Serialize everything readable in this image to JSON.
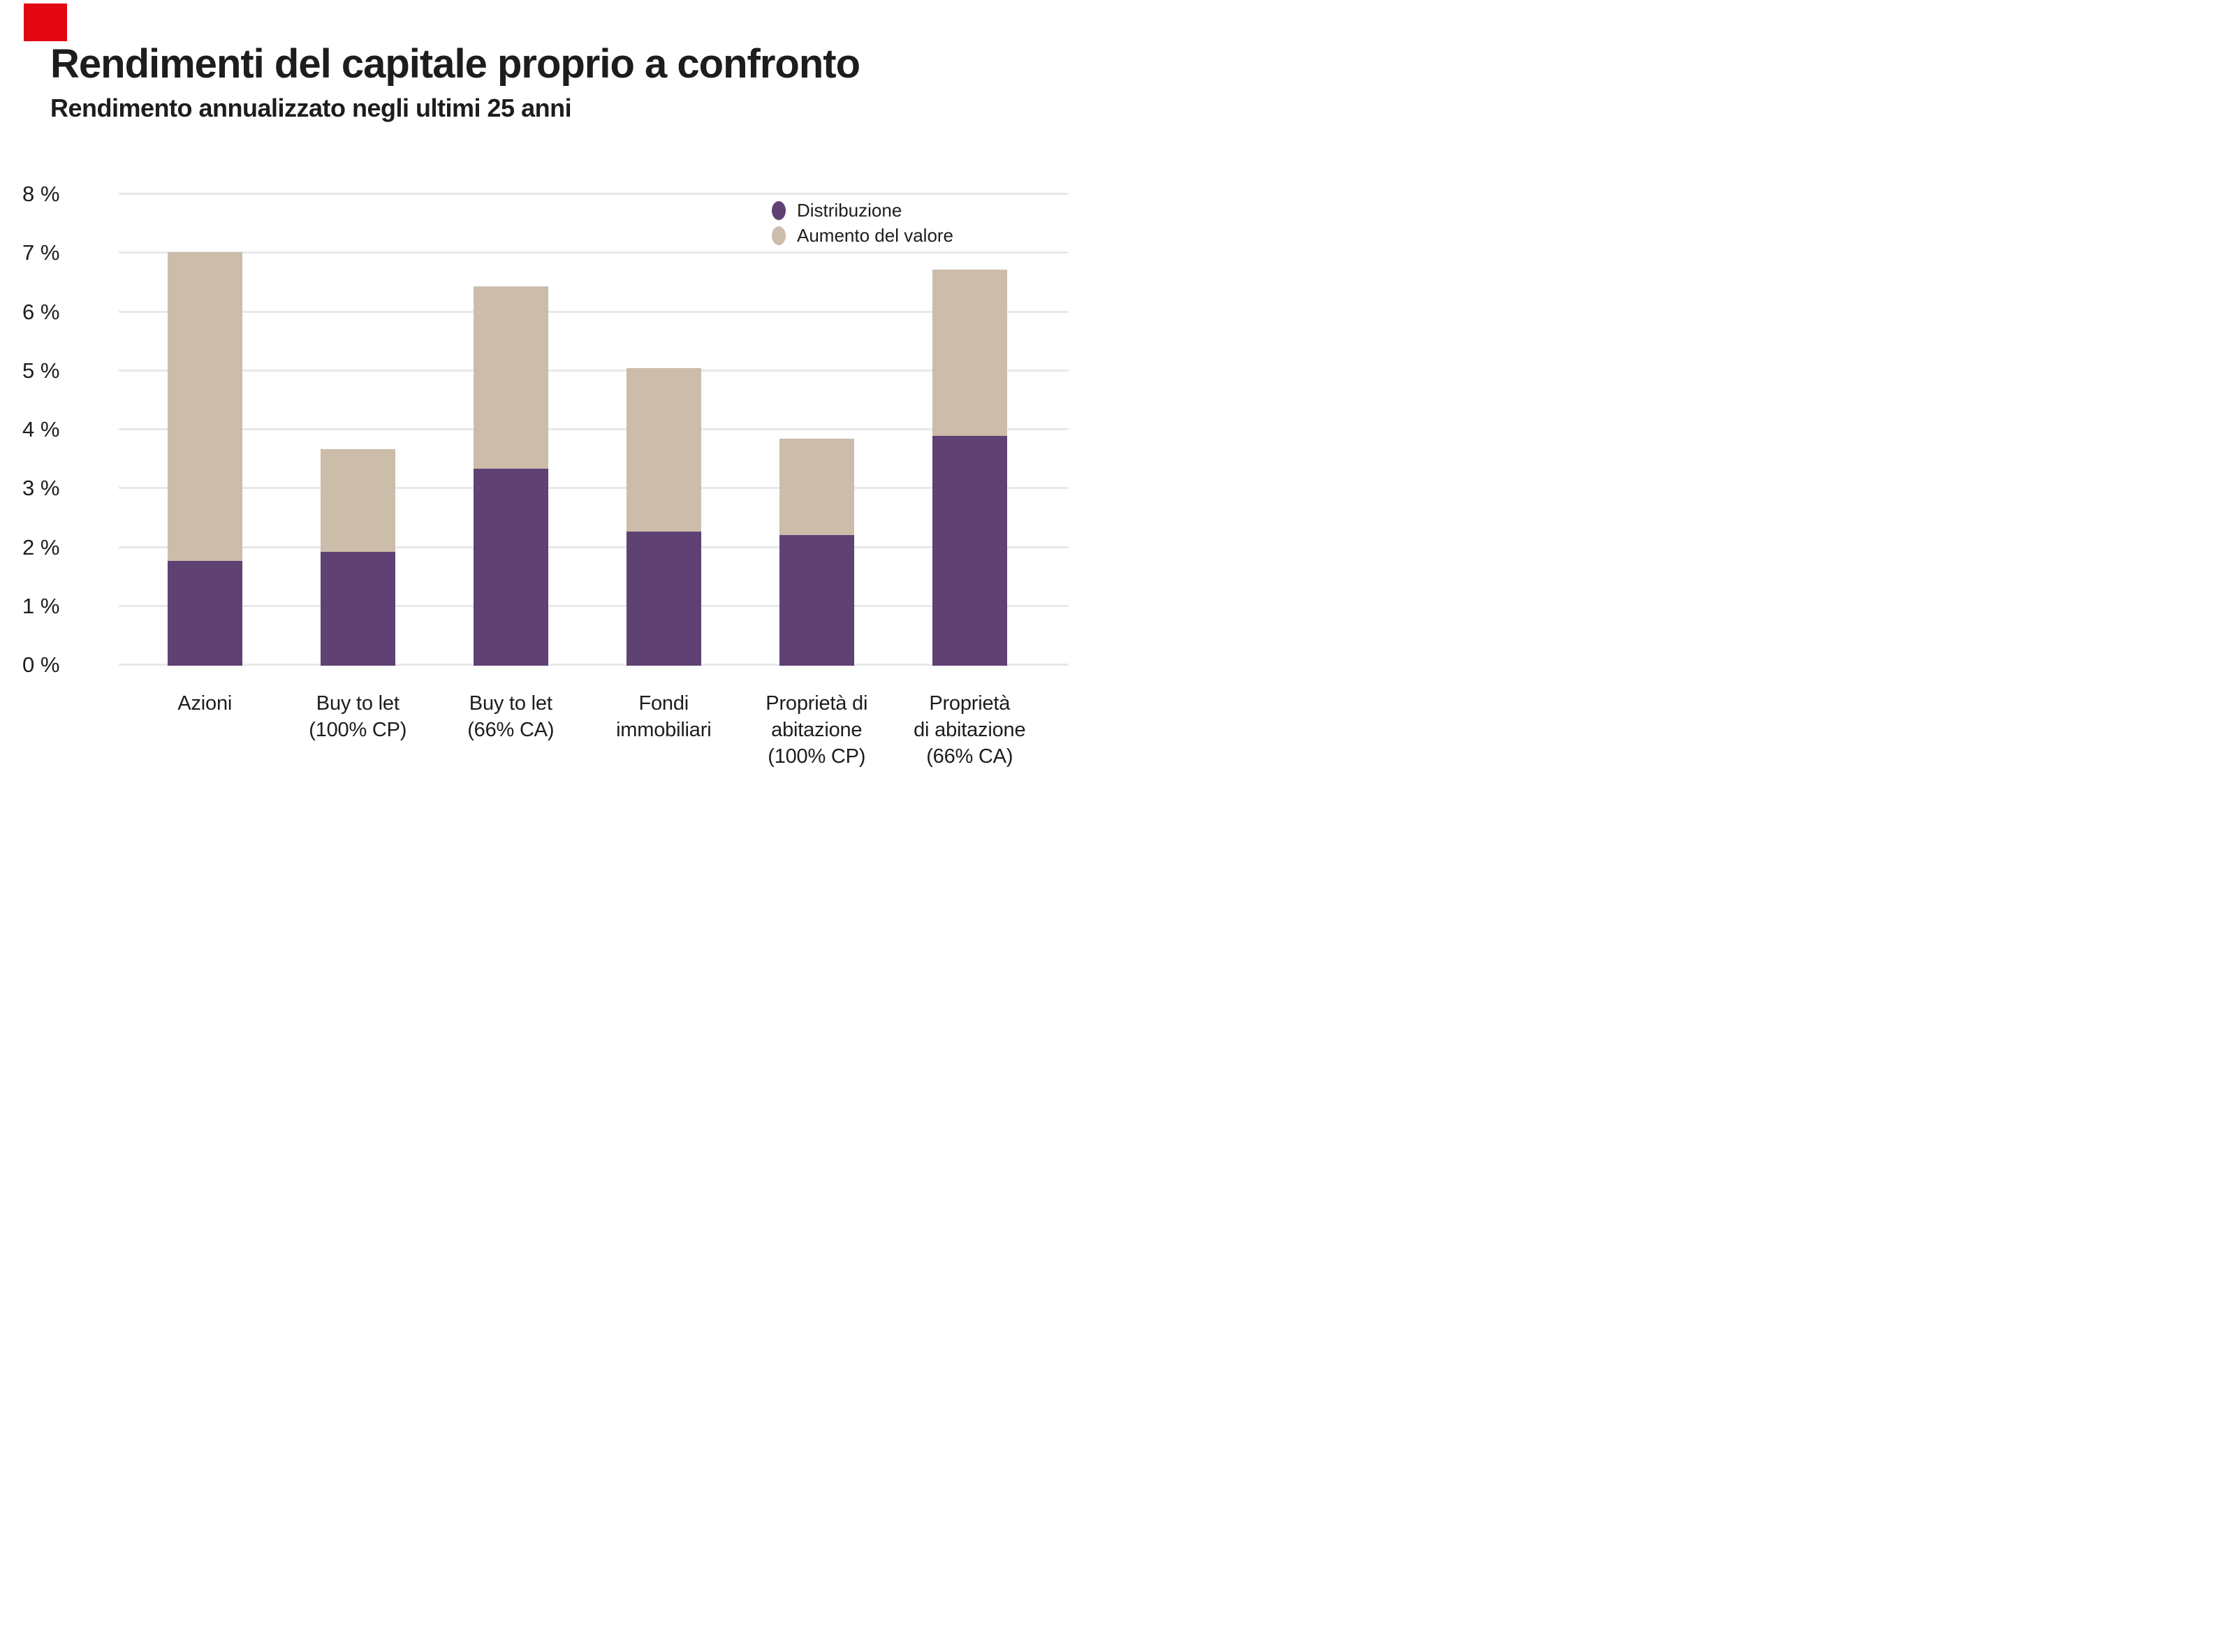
{
  "page": {
    "title": "Rendimenti del capitale proprio a confronto",
    "subtitle": "Rendimento annualizzato negli ultimi 25 anni"
  },
  "brand": {
    "logo_color": "#e30613"
  },
  "colors": {
    "text": "#1d1d1b",
    "gridline": "#e8e8e8",
    "distribution": "#5f4174",
    "value_increase": "#ccbcaa"
  },
  "legend": {
    "items": [
      {
        "label": "Distribuzione",
        "color": "#5f4174"
      },
      {
        "label": "Aumento del valore",
        "color": "#ccbcaa"
      }
    ]
  },
  "chart_data": {
    "type": "bar",
    "stacked": true,
    "title": "Rendimenti del capitale proprio a confronto",
    "subtitle": "Rendimento annualizzato negli ultimi 25 anni",
    "categories": [
      [
        "Azioni"
      ],
      [
        "Buy to let",
        "(100% CP)"
      ],
      [
        "Buy to let",
        "(66% CA)"
      ],
      [
        "Fondi",
        "immobiliari"
      ],
      [
        "Proprietà di",
        "abitazione",
        "(100% CP)"
      ],
      [
        "Proprietà",
        "di abitazione",
        "(66% CA)"
      ]
    ],
    "series": [
      {
        "name": "Distribuzione",
        "color": "#5f4174",
        "values": [
          1.78,
          1.94,
          3.35,
          2.28,
          2.22,
          3.9
        ]
      },
      {
        "name": "Aumento del valore",
        "color": "#ccbcaa",
        "values": [
          5.25,
          1.74,
          3.1,
          2.78,
          1.64,
          2.83
        ]
      }
    ],
    "totals": [
      7.03,
      3.68,
      6.45,
      5.06,
      3.86,
      6.73
    ],
    "ylim": [
      0,
      8
    ],
    "yticks": [
      0,
      1,
      2,
      3,
      4,
      5,
      6,
      7,
      8
    ],
    "y_tick_labels": [
      "0 %",
      "1 %",
      "2 %",
      "3 %",
      "4 %",
      "5 %",
      "6 %",
      "7 %",
      "8 %"
    ],
    "xlabel": "",
    "ylabel": "",
    "grid": true,
    "legend_position": "top-right"
  }
}
